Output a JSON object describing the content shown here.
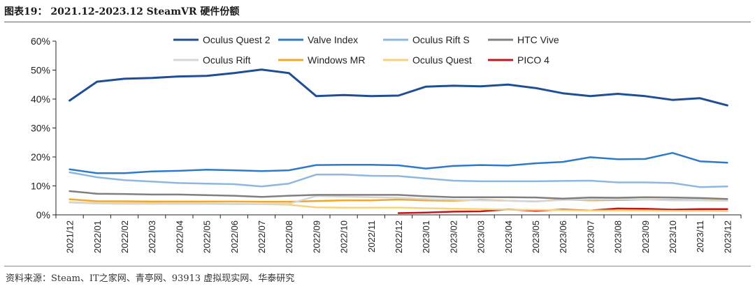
{
  "header": {
    "title": "图表19：  2021.12-2023.12 SteamVR 硬件份额"
  },
  "footer": {
    "source": "资料来源：Steam、IT之家网、青亭网、93913 虚拟现实网、华泰研究"
  },
  "chart_data": {
    "type": "line",
    "title": "2021.12-2023.12 SteamVR 硬件份额",
    "xlabel": "",
    "ylabel": "",
    "ylim": [
      0,
      60
    ],
    "yticks": [
      "0%",
      "10%",
      "20%",
      "30%",
      "40%",
      "50%",
      "60%"
    ],
    "grid": false,
    "legend_position": "top",
    "categories": [
      "2021/12",
      "2022/01",
      "2022/02",
      "2022/03",
      "2022/04",
      "2022/05",
      "2022/06",
      "2022/07",
      "2022/08",
      "2022/09",
      "2022/10",
      "2022/11",
      "2022/12",
      "2023/01",
      "2023/02",
      "2023/03",
      "2023/04",
      "2023/05",
      "2023/06",
      "2023/07",
      "2023/08",
      "2023/09",
      "2023/10",
      "2023/11",
      "2023/12"
    ],
    "series": [
      {
        "name": "Oculus Quest 2",
        "color": "#1f4e96",
        "width": 3,
        "values": [
          39.5,
          46.0,
          47.0,
          47.3,
          47.8,
          48.0,
          49.0,
          50.2,
          49.0,
          41.0,
          41.4,
          41.0,
          41.2,
          44.3,
          44.6,
          44.4,
          45.0,
          43.8,
          42.0,
          41.0,
          41.8,
          41.0,
          39.7,
          40.3,
          37.8
        ]
      },
      {
        "name": "Valve Index",
        "color": "#2e7ac6",
        "width": 2.5,
        "values": [
          15.7,
          14.4,
          14.4,
          15.0,
          15.2,
          15.6,
          15.4,
          15.1,
          15.4,
          17.2,
          17.3,
          17.3,
          17.1,
          16.0,
          16.9,
          17.2,
          17.0,
          17.8,
          18.3,
          19.9,
          19.2,
          19.3,
          21.4,
          18.5,
          18.0
        ]
      },
      {
        "name": "Oculus Rift S",
        "color": "#8db7de",
        "width": 2.5,
        "values": [
          14.7,
          13.0,
          12.0,
          11.5,
          11.0,
          10.8,
          10.6,
          9.8,
          10.8,
          13.9,
          13.9,
          13.5,
          13.4,
          12.6,
          11.8,
          11.6,
          11.6,
          11.6,
          11.7,
          11.8,
          11.2,
          11.2,
          11.0,
          9.6,
          9.8
        ]
      },
      {
        "name": "HTC Vive",
        "color": "#7f7f7f",
        "width": 2.5,
        "values": [
          8.2,
          7.3,
          7.2,
          7.0,
          7.0,
          6.8,
          6.6,
          6.2,
          6.6,
          6.9,
          6.9,
          6.9,
          6.9,
          6.4,
          6.1,
          6.1,
          6.1,
          6.0,
          5.6,
          6.0,
          5.9,
          6.1,
          6.0,
          5.8,
          5.5
        ]
      },
      {
        "name": "Oculus Rift",
        "color": "#d6d6d6",
        "width": 2.5,
        "values": [
          4.3,
          3.9,
          3.8,
          3.8,
          3.8,
          3.8,
          3.7,
          3.7,
          3.8,
          6.5,
          6.3,
          6.1,
          5.9,
          5.5,
          5.2,
          5.0,
          4.9,
          4.7,
          5.1,
          5.3,
          5.4,
          5.3,
          5.0,
          5.0,
          4.9
        ]
      },
      {
        "name": "Windows MR",
        "color": "#f5a623",
        "width": 2.5,
        "values": [
          5.4,
          4.7,
          4.7,
          4.6,
          4.6,
          4.6,
          4.6,
          4.5,
          4.5,
          4.8,
          5.0,
          5.0,
          5.3,
          5.0,
          4.9,
          5.2,
          4.9,
          4.6,
          5.3,
          5.0,
          5.1,
          5.3,
          5.2,
          5.1,
          4.9
        ]
      },
      {
        "name": "Oculus Quest",
        "color": "#f7d27a",
        "width": 2.5,
        "values": [
          4.4,
          4.0,
          4.0,
          4.0,
          3.9,
          3.9,
          3.8,
          3.7,
          3.5,
          2.6,
          2.5,
          2.5,
          2.5,
          2.3,
          2.1,
          2.0,
          1.8,
          1.7,
          1.6,
          1.5,
          1.5,
          1.5,
          1.4,
          1.4,
          1.3
        ]
      },
      {
        "name": "PICO 4",
        "color": "#c0171c",
        "width": 2.5,
        "values": [
          null,
          null,
          null,
          null,
          null,
          null,
          null,
          null,
          null,
          null,
          null,
          null,
          0.6,
          0.8,
          1.1,
          1.2,
          1.9,
          1.4,
          1.8,
          1.5,
          2.2,
          2.1,
          1.8,
          2.0,
          2.0
        ]
      }
    ]
  }
}
